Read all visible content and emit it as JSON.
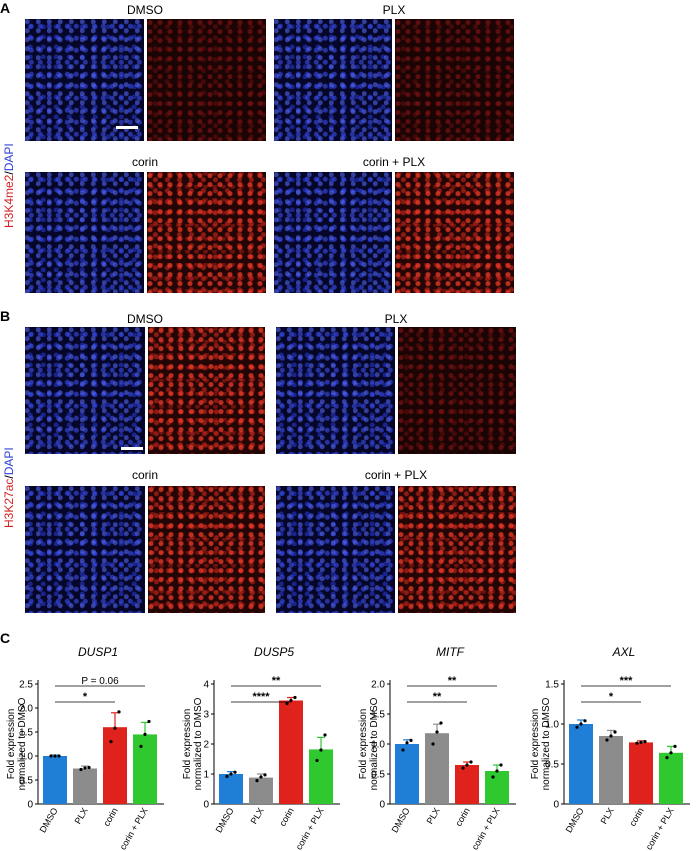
{
  "panel_a": {
    "letter": "A",
    "side_label_marker": "H3K4me2",
    "side_label_sep": "/",
    "side_label_stain": "DAPI",
    "conditions": [
      "DMSO",
      "PLX",
      "corin",
      "corin + PLX"
    ]
  },
  "panel_b": {
    "letter": "B",
    "side_label_marker": "H3K27ac",
    "side_label_sep": "/",
    "side_label_stain": "DAPI",
    "conditions": [
      "DMSO",
      "PLX",
      "corin",
      "corin + PLX"
    ]
  },
  "panel_c": {
    "letter": "C"
  },
  "colors": {
    "DMSO": "#1f7fd6",
    "PLX": "#8c8c8c",
    "corin": "#e0221c",
    "corin + PLX": "#2fc82f"
  },
  "chart_data": [
    {
      "type": "bar",
      "title": "DUSP1",
      "ylabel": "Fold expression normalized to DMSO",
      "categories": [
        "DMSO",
        "PLX",
        "corin",
        "corin + PLX"
      ],
      "values": [
        1.0,
        0.74,
        1.6,
        1.45
      ],
      "errors": [
        0.02,
        0.05,
        0.3,
        0.25
      ],
      "points": [
        [
          1.0,
          1.0,
          1.0
        ],
        [
          0.72,
          0.75,
          0.76
        ],
        [
          1.3,
          1.58,
          1.92
        ],
        [
          1.2,
          1.45,
          1.72
        ]
      ],
      "ylim": [
        0,
        2.5
      ],
      "yticks": [
        "0",
        "0.5",
        "1.0",
        "1.5",
        "2.0",
        "2.5"
      ],
      "annotations": [
        {
          "from": "DMSO",
          "to": "corin + PLX",
          "label": "P = 0.06"
        },
        {
          "from": "DMSO",
          "to": "corin",
          "label": "*"
        }
      ]
    },
    {
      "type": "bar",
      "title": "DUSP5",
      "ylabel": "Fold expression normalized to DMSO",
      "categories": [
        "DMSO",
        "PLX",
        "corin",
        "corin + PLX"
      ],
      "values": [
        1.0,
        0.88,
        3.45,
        1.82
      ],
      "errors": [
        0.08,
        0.12,
        0.1,
        0.4
      ],
      "points": [
        [
          0.92,
          1.0,
          1.06
        ],
        [
          0.78,
          0.9,
          0.97
        ],
        [
          3.35,
          3.45,
          3.55
        ],
        [
          1.45,
          1.8,
          2.3
        ]
      ],
      "ylim": [
        0,
        4
      ],
      "yticks": [
        "0",
        "1",
        "2",
        "3",
        "4"
      ],
      "annotations": [
        {
          "from": "DMSO",
          "to": "corin + PLX",
          "label": "**"
        },
        {
          "from": "DMSO",
          "to": "corin",
          "label": "****"
        }
      ]
    },
    {
      "type": "bar",
      "title": "MITF",
      "ylabel": "Fold expression normalized to DMSO",
      "categories": [
        "DMSO",
        "PLX",
        "corin",
        "corin + PLX"
      ],
      "values": [
        1.0,
        1.18,
        0.65,
        0.55
      ],
      "errors": [
        0.07,
        0.15,
        0.05,
        0.1
      ],
      "points": [
        [
          0.9,
          1.02,
          1.06
        ],
        [
          1.0,
          1.2,
          1.35
        ],
        [
          0.6,
          0.65,
          0.7
        ],
        [
          0.45,
          0.55,
          0.65
        ]
      ],
      "ylim": [
        0,
        2.0
      ],
      "yticks": [
        "0",
        "0.5",
        "1.0",
        "1.5",
        "2.0"
      ],
      "annotations": [
        {
          "from": "DMSO",
          "to": "corin + PLX",
          "label": "**"
        },
        {
          "from": "DMSO",
          "to": "corin",
          "label": "**"
        }
      ]
    },
    {
      "type": "bar",
      "title": "AXL",
      "ylabel": "Fold expression normalized to DMSO",
      "categories": [
        "DMSO",
        "PLX",
        "corin",
        "corin + PLX"
      ],
      "values": [
        1.0,
        0.85,
        0.77,
        0.64
      ],
      "errors": [
        0.05,
        0.07,
        0.02,
        0.08
      ],
      "points": [
        [
          0.96,
          1.0,
          1.04
        ],
        [
          0.8,
          0.85,
          0.9
        ],
        [
          0.76,
          0.77,
          0.78
        ],
        [
          0.58,
          0.64,
          0.72
        ]
      ],
      "ylim": [
        0,
        1.5
      ],
      "yticks": [
        "0",
        "0.5",
        "1.0",
        "1.5"
      ],
      "annotations": [
        {
          "from": "DMSO",
          "to": "corin + PLX",
          "label": "***"
        },
        {
          "from": "DMSO",
          "to": "corin",
          "label": "*"
        }
      ]
    }
  ]
}
